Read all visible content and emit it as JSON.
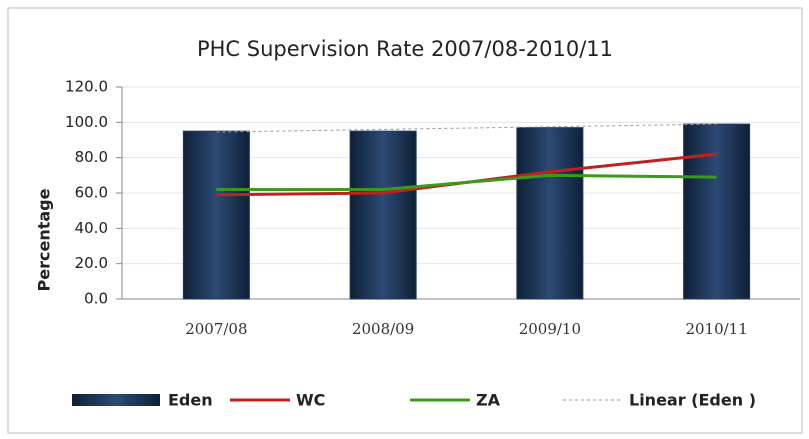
{
  "chart_data": {
    "type": "bar",
    "title": "PHC Supervision Rate 2007/08-2010/11",
    "y_label": "Percentage",
    "categories": [
      "2007/08",
      "2008/09",
      "2009/10",
      "2010/11"
    ],
    "series": [
      {
        "name": "Eden",
        "type": "bar",
        "color": "#1f3a5f",
        "values": [
          95,
          95,
          97,
          99
        ]
      },
      {
        "name": "WC",
        "type": "line",
        "color": "#c0201e",
        "values": [
          59,
          60,
          72,
          82
        ]
      },
      {
        "name": "ZA",
        "type": "line",
        "color": "#3a9a1c",
        "values": [
          62,
          62,
          70,
          69
        ]
      },
      {
        "name": "Linear (Eden )",
        "type": "line",
        "dash": true,
        "color": "#999999",
        "values": [
          94.5,
          96,
          97.5,
          99
        ]
      }
    ],
    "ylim": [
      0,
      120
    ],
    "yticks": [
      {
        "value": 0,
        "label": "0.0"
      },
      {
        "value": 20,
        "label": "20.0"
      },
      {
        "value": 40,
        "label": "40.0"
      },
      {
        "value": 60,
        "label": "60.0"
      },
      {
        "value": 80,
        "label": "80.0"
      },
      {
        "value": 100,
        "label": "100.0"
      },
      {
        "value": 120,
        "label": "120.0"
      }
    ],
    "grid": true,
    "legend": "bottom"
  }
}
